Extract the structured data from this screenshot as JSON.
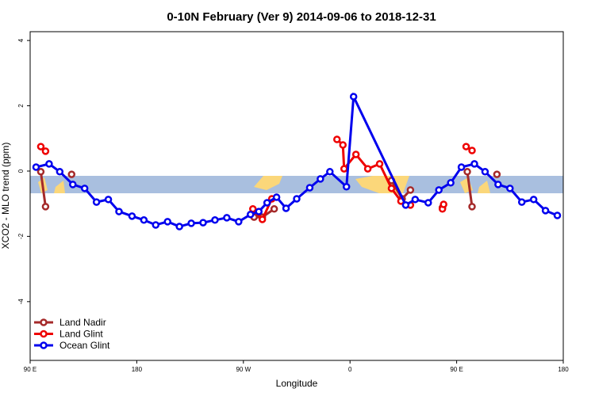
{
  "chart_data": {
    "type": "line",
    "title": "0-10N February (Ver 9)   2014-09-06 to 2018-12-31",
    "x_label": "Longitude",
    "y_label": "XCO2 - MLO trend (ppm)",
    "xlim": [
      90,
      540
    ],
    "ylim": [
      -5.8,
      4.27
    ],
    "xticks": [
      {
        "value": 90,
        "label": "90 E"
      },
      180,
      {
        "value": 270,
        "label": "90 W"
      },
      {
        "value": 360,
        "label": "0"
      },
      {
        "value": 450,
        "label": "90 E"
      },
      {
        "value": 540,
        "label": "180"
      }
    ],
    "yticks": [
      -4,
      -2,
      0,
      2,
      4
    ],
    "legend": "bottom-left",
    "series": [
      {
        "name": "Land Nadir",
        "color": "#a52a2a",
        "x": [
          99,
          103,
          null,
          125,
          null,
          279,
          286,
          296,
          null,
          395,
          404,
          411,
          null,
          438,
          null,
          459,
          463,
          null,
          484
        ],
        "values": [
          -0.02,
          -1.09,
          null,
          -0.1,
          null,
          -1.41,
          -1.41,
          -1.16,
          null,
          -0.29,
          -0.85,
          -0.58,
          null,
          -1.12,
          null,
          -0.02,
          -1.09,
          null,
          -0.1
        ]
      },
      {
        "name": "Land Glint",
        "color": "#ee0000",
        "x": [
          99,
          103,
          null,
          278,
          286,
          294,
          null,
          349,
          354,
          355,
          365,
          375,
          385,
          395,
          403,
          411,
          null,
          438,
          439,
          null,
          458,
          463
        ],
        "values": [
          0.75,
          0.61,
          null,
          -1.16,
          -1.48,
          -0.85,
          null,
          0.97,
          0.8,
          0.07,
          0.51,
          0.07,
          0.22,
          -0.53,
          -0.92,
          -1.04,
          null,
          -1.16,
          -1.02,
          null,
          0.75,
          0.63
        ]
      },
      {
        "name": "Ocean Glint",
        "color": "#0000ee",
        "x": [
          95,
          106,
          115,
          126,
          136,
          146,
          156,
          165,
          176,
          186,
          196,
          206,
          216,
          226,
          236,
          246,
          256,
          266,
          276,
          283,
          290,
          298,
          306,
          315,
          326,
          335,
          343,
          357,
          363,
          407,
          415,
          426,
          435,
          445,
          454,
          465,
          474,
          485,
          495,
          505,
          515,
          525,
          535
        ],
        "values": [
          0.12,
          0.22,
          -0.02,
          -0.41,
          -0.53,
          -0.95,
          -0.87,
          -1.24,
          -1.38,
          -1.5,
          -1.65,
          -1.55,
          -1.7,
          -1.6,
          -1.58,
          -1.5,
          -1.43,
          -1.55,
          -1.33,
          -1.24,
          -0.97,
          -0.8,
          -1.14,
          -0.85,
          -0.51,
          -0.24,
          -0.02,
          -0.48,
          2.28,
          -1.04,
          -0.87,
          -0.97,
          -0.58,
          -0.36,
          0.12,
          0.22,
          -0.02,
          -0.41,
          -0.53,
          -0.95,
          -0.87,
          -1.21,
          -1.36
        ]
      }
    ]
  }
}
